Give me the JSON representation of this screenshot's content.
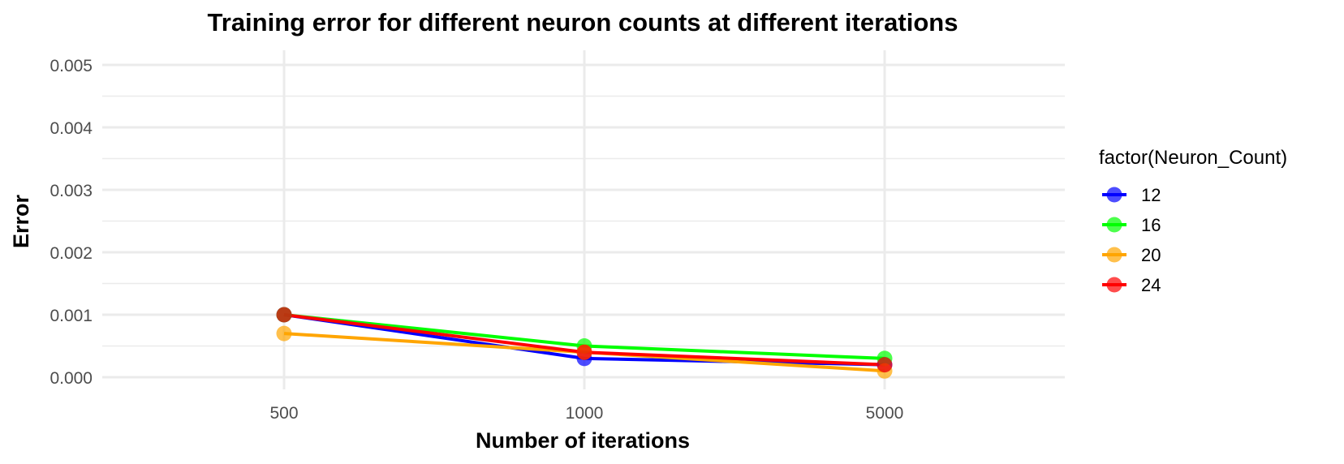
{
  "chart_data": {
    "type": "line",
    "title": "Training error for different neuron counts at different iterations",
    "xlabel": "Number of iterations",
    "ylabel": "Error",
    "categories": [
      "500",
      "1000",
      "5000"
    ],
    "y_ticks": [
      "0.000",
      "0.001",
      "0.002",
      "0.003",
      "0.004",
      "0.005"
    ],
    "ylim": [
      0,
      0.005
    ],
    "grid": true,
    "legend": {
      "title": "factor(Neuron_Count)",
      "position": "right"
    },
    "series": [
      {
        "name": "12",
        "color": "#0000ff",
        "values": [
          0.001,
          0.0003,
          0.0002
        ]
      },
      {
        "name": "16",
        "color": "#00ff00",
        "values": [
          0.001,
          0.0005,
          0.0003
        ]
      },
      {
        "name": "20",
        "color": "#ffa500",
        "values": [
          0.0007,
          0.0004,
          0.0001
        ]
      },
      {
        "name": "24",
        "color": "#ff0000",
        "values": [
          0.001,
          0.0004,
          0.0002
        ]
      }
    ]
  }
}
